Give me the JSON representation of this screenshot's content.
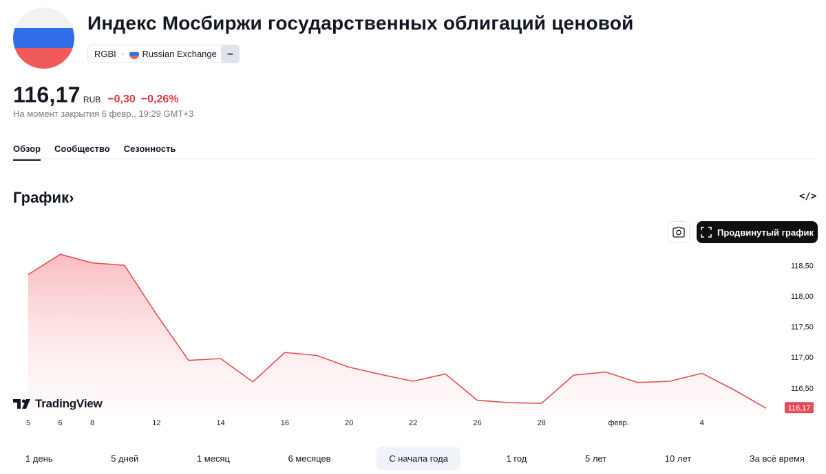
{
  "header": {
    "title": "Индекс Мосбиржи государственных облигаций ценовой",
    "symbol": "RGBI",
    "separator": "·",
    "exchange": "Russian Exchange",
    "extra_chip": "–"
  },
  "quote": {
    "price": "116,17",
    "currency": "RUB",
    "change": "−0,30",
    "change_pct": "−0,26%",
    "as_of": "На момент закрытия 6 февр., 19:29 GMT+3"
  },
  "tabs": [
    {
      "label": "Обзор",
      "active": true
    },
    {
      "label": "Сообщество",
      "active": false
    },
    {
      "label": "Сезонность",
      "active": false
    }
  ],
  "section": {
    "title": "График",
    "chevron": "›",
    "embed_glyph": "</>"
  },
  "toolbar": {
    "advanced_chart_label": "Продвинутый график",
    "snapshot_icon": "camera-icon",
    "fullscreen_icon": "expand-icon"
  },
  "brand": {
    "name": "TradingView"
  },
  "colors": {
    "line": "#e84b55",
    "negative": "#e2363f",
    "price_tag": "#e84b55"
  },
  "chart_data": {
    "type": "area",
    "x": [
      "5",
      "6",
      "8",
      "9",
      "12",
      "13",
      "14",
      "15",
      "16",
      "19",
      "20",
      "21",
      "22",
      "23",
      "26",
      "27",
      "28",
      "29",
      "30",
      "2",
      "3",
      "4",
      "5",
      "6"
    ],
    "x_ticks": [
      "5",
      "8",
      "12",
      "14",
      "16",
      "20",
      "22",
      "26",
      "28",
      "февр.",
      "4",
      "6"
    ],
    "series": [
      {
        "values": [
          118.35,
          118.68,
          118.54,
          118.5,
          117.7,
          116.95,
          116.98,
          116.6,
          117.08,
          117.03,
          116.84,
          116.72,
          116.61,
          116.73,
          116.3,
          116.26,
          116.25,
          116.71,
          116.76,
          116.59,
          116.61,
          116.74,
          116.47,
          116.17
        ]
      }
    ],
    "y_ticks": [
      "118,50",
      "118,00",
      "117,50",
      "117,00",
      "116,50"
    ],
    "ylim": [
      116.05,
      118.85
    ],
    "last_value_label": "116,17",
    "grid": false,
    "legend": "none"
  },
  "ranges": [
    {
      "label": "1 день",
      "active": false
    },
    {
      "label": "5 дней",
      "active": false
    },
    {
      "label": "1 месяц",
      "active": false
    },
    {
      "label": "6 месяцев",
      "active": false
    },
    {
      "label": "С начала года",
      "active": true
    },
    {
      "label": "1 год",
      "active": false
    },
    {
      "label": "5 лет",
      "active": false
    },
    {
      "label": "10 лет",
      "active": false
    },
    {
      "label": "За всё время",
      "active": false
    }
  ]
}
